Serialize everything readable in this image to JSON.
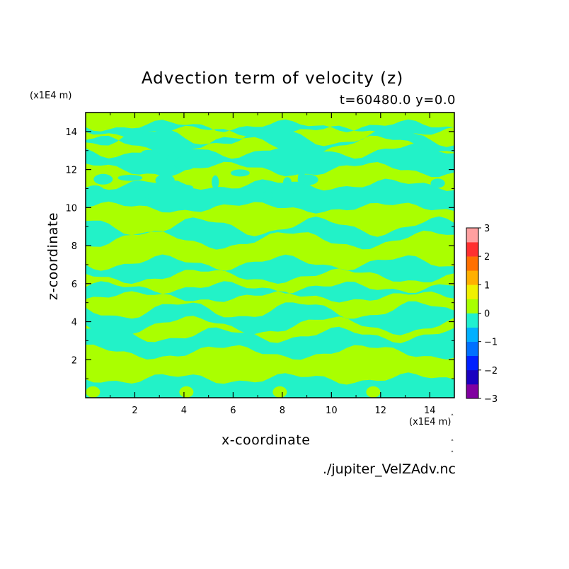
{
  "chart_data": {
    "type": "heatmap",
    "title": "Advection term of velocity (z)",
    "subtitle": "t=60480.0 y=0.0",
    "xlabel": "x-coordinate",
    "ylabel": "z-coordinate",
    "x_unit": "(x1E4 m)",
    "y_unit": "(x1E4 m)",
    "xlim": [
      0,
      15
    ],
    "ylim": [
      0,
      15
    ],
    "x_ticks": [
      2,
      4,
      6,
      8,
      10,
      12,
      14
    ],
    "y_ticks": [
      2,
      4,
      6,
      8,
      10,
      12,
      14
    ],
    "colorbar": {
      "levels": [
        -3,
        -2.5,
        -2,
        -1.5,
        -1,
        -0.5,
        0,
        0.5,
        1,
        1.5,
        2,
        2.5,
        3
      ],
      "tick_labels": [
        "3",
        "2",
        "1",
        "0",
        "−1",
        "−2",
        "−3"
      ],
      "colors": [
        "#8000a0",
        "#1a00c0",
        "#0020ff",
        "#0070ff",
        "#00b0ff",
        "#20f0d0",
        "#a8ff00",
        "#f0f000",
        "#ffb000",
        "#ff7000",
        "#ff3030",
        "#ffa0a0"
      ]
    },
    "field_colors": {
      "negative": "#22f2c8",
      "positive": "#aaff00"
    },
    "regions": [
      {
        "sign": "negative",
        "label": "cyan band",
        "z_range": [
          0,
          1.0
        ]
      },
      {
        "sign": "negative",
        "label": "cyan band",
        "z_range": [
          2.4,
          3.3
        ]
      },
      {
        "sign": "negative",
        "label": "cyan band",
        "z_range": [
          3.8,
          4.6
        ]
      },
      {
        "sign": "negative",
        "label": "cyan band",
        "z_range": [
          5.3,
          5.8
        ]
      },
      {
        "sign": "negative",
        "label": "cyan band",
        "z_range": [
          6.4,
          7.1
        ]
      },
      {
        "sign": "negative",
        "label": "cyan band",
        "z_range": [
          8.3,
          9.0
        ]
      },
      {
        "sign": "negative",
        "label": "cyan band",
        "z_range": [
          10.0,
          11.2
        ]
      },
      {
        "sign": "negative",
        "label": "cyan band",
        "z_range": [
          12.0,
          13.0
        ]
      },
      {
        "sign": "negative",
        "label": "cyan band",
        "z_range": [
          13.3,
          13.7
        ]
      },
      {
        "sign": "negative",
        "label": "cyan band",
        "z_range": [
          14.0,
          14.3
        ]
      }
    ],
    "grid": false,
    "legend": "colorbar-right"
  },
  "source_label": "./jupiter_VelZAdv.nc"
}
